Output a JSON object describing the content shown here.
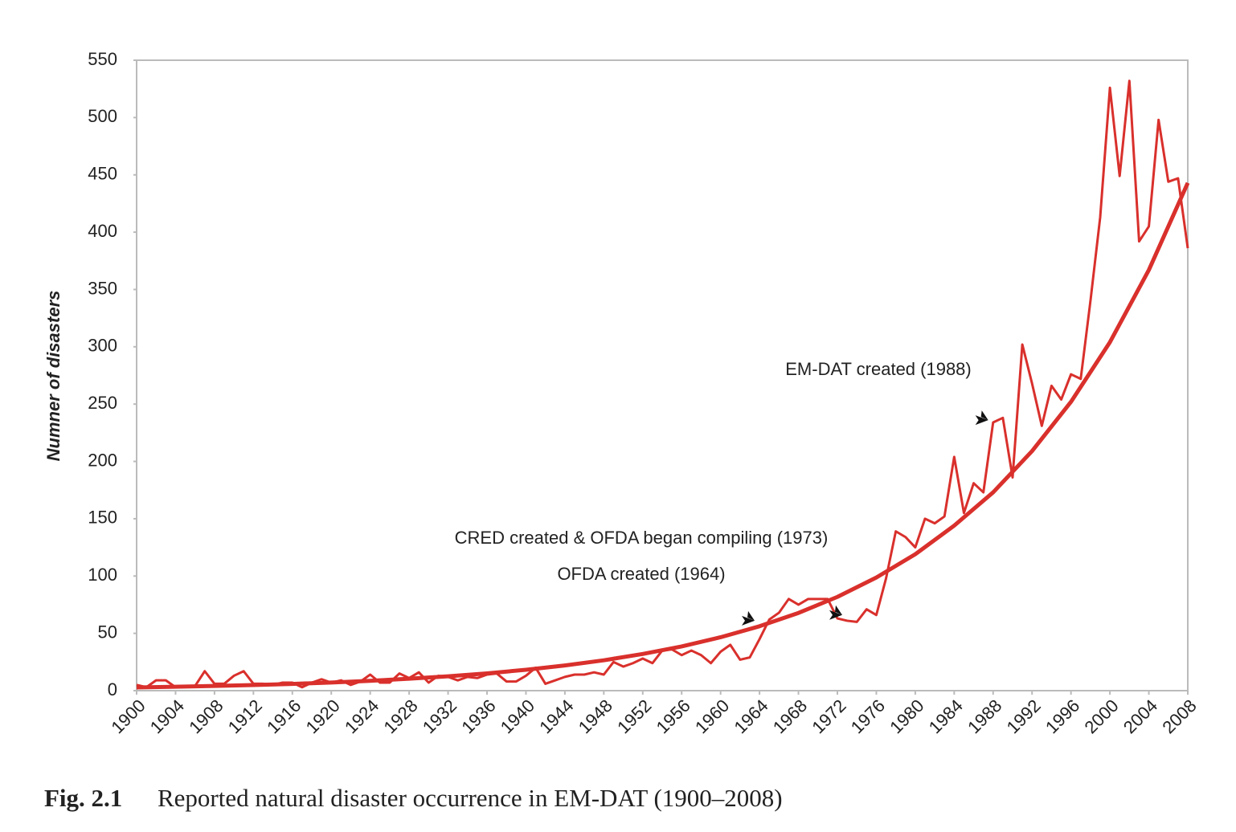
{
  "chart_data": {
    "type": "line",
    "y_label": "Numner of disasters",
    "caption_label": "Fig. 2.1",
    "caption": "Reported natural disaster occurrence in EM-DAT (1900–2008)",
    "x": [
      1900,
      1901,
      1902,
      1903,
      1904,
      1905,
      1906,
      1907,
      1908,
      1909,
      1910,
      1911,
      1912,
      1913,
      1914,
      1915,
      1916,
      1917,
      1918,
      1919,
      1920,
      1921,
      1922,
      1923,
      1924,
      1925,
      1926,
      1927,
      1928,
      1929,
      1930,
      1931,
      1932,
      1933,
      1934,
      1935,
      1936,
      1937,
      1938,
      1939,
      1940,
      1941,
      1942,
      1943,
      1944,
      1945,
      1946,
      1947,
      1948,
      1949,
      1950,
      1951,
      1952,
      1953,
      1954,
      1955,
      1956,
      1957,
      1958,
      1959,
      1960,
      1961,
      1962,
      1963,
      1964,
      1965,
      1966,
      1967,
      1968,
      1969,
      1970,
      1971,
      1972,
      1973,
      1974,
      1975,
      1976,
      1977,
      1978,
      1979,
      1980,
      1981,
      1982,
      1983,
      1984,
      1985,
      1986,
      1987,
      1988,
      1989,
      1990,
      1991,
      1992,
      1993,
      1994,
      1995,
      1996,
      1997,
      1998,
      1999,
      2000,
      2001,
      2002,
      2003,
      2004,
      2005,
      2006,
      2007,
      2008
    ],
    "series": [
      {
        "color": "#d9302c",
        "values": [
          5,
          3,
          9,
          9,
          3,
          4,
          4,
          17,
          6,
          6,
          13,
          17,
          6,
          6,
          5,
          7,
          7,
          3,
          7,
          10,
          7,
          9,
          5,
          8,
          14,
          7,
          7,
          15,
          11,
          16,
          7,
          13,
          12,
          9,
          12,
          11,
          14,
          15,
          8,
          8,
          13,
          20,
          6,
          9,
          12,
          14,
          14,
          16,
          14,
          25,
          21,
          24,
          28,
          24,
          35,
          36,
          31,
          35,
          31,
          24,
          34,
          40,
          27,
          29,
          45,
          62,
          68,
          80,
          75,
          80,
          80,
          80,
          63,
          61,
          60,
          71,
          66,
          98,
          139,
          134,
          125,
          150,
          146,
          152,
          204,
          155,
          181,
          173,
          234,
          238,
          186,
          302,
          268,
          231,
          266,
          254,
          276,
          272,
          340,
          413,
          526,
          449,
          532,
          392,
          405,
          498,
          444,
          447,
          386
        ]
      },
      {
        "color": "#d9302c",
        "x": [
          1900,
          1904,
          1908,
          1912,
          1916,
          1920,
          1924,
          1928,
          1932,
          1936,
          1940,
          1944,
          1948,
          1952,
          1956,
          1960,
          1964,
          1968,
          1972,
          1976,
          1980,
          1984,
          1988,
          1992,
          1996,
          2000,
          2004,
          2008
        ],
        "values": [
          2.8,
          3.4,
          4.1,
          4.9,
          5.9,
          7.1,
          8.6,
          10.4,
          12.5,
          15.1,
          18.2,
          22.0,
          26.5,
          32.0,
          38.6,
          46.6,
          56.2,
          67.8,
          81.8,
          98.7,
          119,
          144,
          173,
          209,
          252,
          304,
          367,
          443
        ]
      }
    ],
    "annotations": [
      {
        "text": "EM-DAT created (1988)",
        "x": 1987,
        "y": 236
      },
      {
        "text": "CRED created & OFDA began compiling  (1973)",
        "x": 1972,
        "y": 66
      },
      {
        "text": "OFDA created (1964)",
        "x": 1963,
        "y": 61
      }
    ],
    "xlim": [
      1900,
      2008
    ],
    "ylim": [
      0,
      550
    ],
    "xticks": [
      1900,
      1904,
      1908,
      1912,
      1916,
      1920,
      1924,
      1928,
      1932,
      1936,
      1940,
      1944,
      1948,
      1952,
      1956,
      1960,
      1964,
      1968,
      1972,
      1976,
      1980,
      1984,
      1988,
      1992,
      1996,
      2000,
      2004,
      2008
    ],
    "yticks": [
      0,
      50,
      100,
      150,
      200,
      250,
      300,
      350,
      400,
      450,
      500,
      550
    ],
    "grid": false
  }
}
